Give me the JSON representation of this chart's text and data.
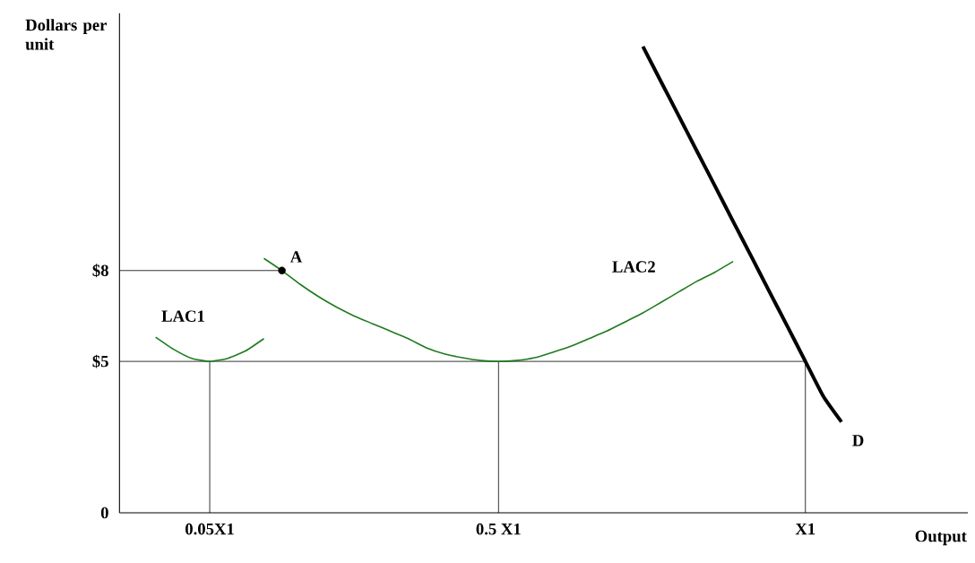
{
  "chart_data": {
    "type": "line",
    "xlabel": "Output",
    "ylabel": "Dollars per unit",
    "categories": [
      null,
      null,
      null,
      null,
      null,
      "0.05X1",
      null,
      null,
      null,
      null,
      null,
      null,
      null,
      null,
      null,
      null,
      null,
      null,
      null,
      null,
      null,
      "0.5 X1",
      null,
      null,
      null,
      null,
      null,
      null,
      null,
      null,
      null,
      null,
      null,
      null,
      null,
      null,
      null,
      null,
      "X1",
      null,
      null,
      null,
      null,
      null,
      null,
      null,
      null,
      null
    ],
    "ylim": [
      0,
      16.5
    ],
    "yticks": [
      0,
      {
        "value": 5,
        "label": "$5"
      },
      {
        "value": 8,
        "label": "$8"
      }
    ],
    "line_style": "solid",
    "annotations": [
      "A"
    ],
    "ref_lines": [
      {
        "axis": "y",
        "value": 8,
        "color": "#000000"
      },
      {
        "axis": "y",
        "value": 5,
        "color": "#000000"
      },
      {
        "axis": "x",
        "value": "0.05X1",
        "color": "#000000"
      },
      {
        "axis": "x",
        "value": "0.5 X1",
        "color": "#000000"
      },
      {
        "axis": "x",
        "value": "X1",
        "color": "#000000"
      }
    ],
    "series": [
      {
        "name": "LAC1",
        "color": "#1e7a1e",
        "values": [
          null,
          null,
          5.8,
          5.4,
          5.1,
          5.0,
          5.1,
          5.35,
          5.75,
          null,
          null,
          null,
          null,
          null,
          null,
          null,
          null,
          null,
          null,
          null,
          null,
          null,
          null,
          null,
          null,
          null,
          null,
          null,
          null,
          null,
          null,
          null,
          null,
          null,
          null,
          null,
          null,
          null,
          null,
          null,
          null,
          null,
          null,
          null,
          null,
          null,
          null,
          null
        ]
      },
      {
        "name": "LAC2",
        "color": "#1e7a1e",
        "values": [
          null,
          null,
          null,
          null,
          null,
          null,
          null,
          null,
          8.4,
          8.0,
          7.55,
          7.15,
          6.8,
          6.5,
          6.25,
          6.0,
          5.75,
          5.45,
          5.25,
          5.12,
          5.03,
          5.0,
          5.03,
          5.12,
          5.3,
          5.5,
          5.75,
          6.0,
          6.3,
          6.6,
          6.95,
          7.3,
          7.65,
          7.95,
          8.3,
          null,
          null,
          null,
          null,
          null,
          null,
          null,
          null,
          null,
          null,
          null,
          null,
          null
        ]
      },
      {
        "name": "D",
        "color": "#000000",
        "values": [
          null,
          null,
          null,
          null,
          null,
          null,
          null,
          null,
          null,
          null,
          null,
          null,
          null,
          null,
          null,
          null,
          null,
          null,
          null,
          null,
          null,
          null,
          null,
          null,
          null,
          null,
          null,
          null,
          null,
          15.4,
          14.24,
          13.09,
          11.93,
          10.78,
          9.62,
          8.47,
          7.31,
          6.16,
          5.0,
          3.84,
          3.0,
          null,
          null,
          null,
          null,
          null,
          null,
          null
        ]
      },
      {
        "type": "scatter",
        "marker": "circle",
        "color": "#000000",
        "values": [
          null,
          null,
          null,
          null,
          null,
          null,
          null,
          null,
          null,
          8,
          null,
          null,
          null,
          null,
          null,
          null,
          null,
          null,
          null,
          null,
          null,
          null,
          null,
          null,
          null,
          null,
          null,
          null,
          null,
          null,
          null,
          null,
          null,
          null,
          null,
          null,
          null,
          null,
          null,
          null,
          null,
          null,
          null,
          null,
          null,
          null,
          null,
          null
        ]
      }
    ]
  }
}
